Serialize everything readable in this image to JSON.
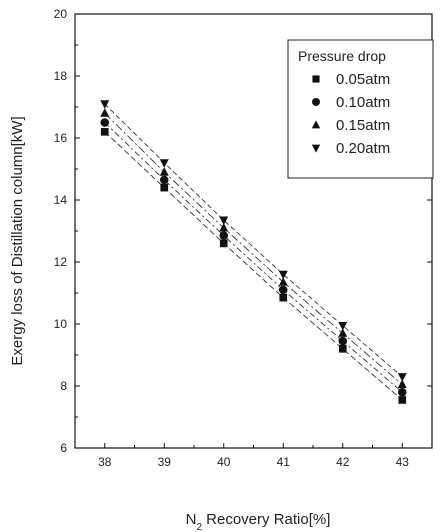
{
  "chart_data": {
    "type": "line",
    "title": "",
    "xlabel": "N",
    "xlabel_sub": "2",
    "xlabel_rest": " Recovery Ratio[%]",
    "ylabel": "Exergy loss of Distillation column[kW]",
    "xlim": [
      37.5,
      43.5
    ],
    "ylim": [
      6,
      20
    ],
    "x_ticks": [
      "38",
      "39",
      "40",
      "41",
      "42",
      "43"
    ],
    "y_ticks": [
      "6",
      "8",
      "10",
      "12",
      "14",
      "16",
      "18",
      "20"
    ],
    "grid": false,
    "legend_title": "Pressure drop",
    "legend_position": "top-right",
    "x": [
      38,
      39,
      40,
      41,
      42,
      43
    ],
    "series": [
      {
        "name": "0.05atm",
        "marker": "square",
        "values": [
          16.2,
          14.4,
          12.6,
          10.85,
          9.2,
          7.55
        ]
      },
      {
        "name": "0.10atm",
        "marker": "circle",
        "values": [
          16.5,
          14.65,
          12.85,
          11.1,
          9.45,
          7.8
        ]
      },
      {
        "name": "0.15atm",
        "marker": "triangle-up",
        "values": [
          16.8,
          14.9,
          13.1,
          11.35,
          9.7,
          8.05
        ]
      },
      {
        "name": "0.20atm",
        "marker": "triangle-down",
        "values": [
          17.1,
          15.2,
          13.35,
          11.6,
          9.95,
          8.3
        ]
      }
    ],
    "colors": {
      "ink": "#111111",
      "line": "#333333"
    }
  }
}
